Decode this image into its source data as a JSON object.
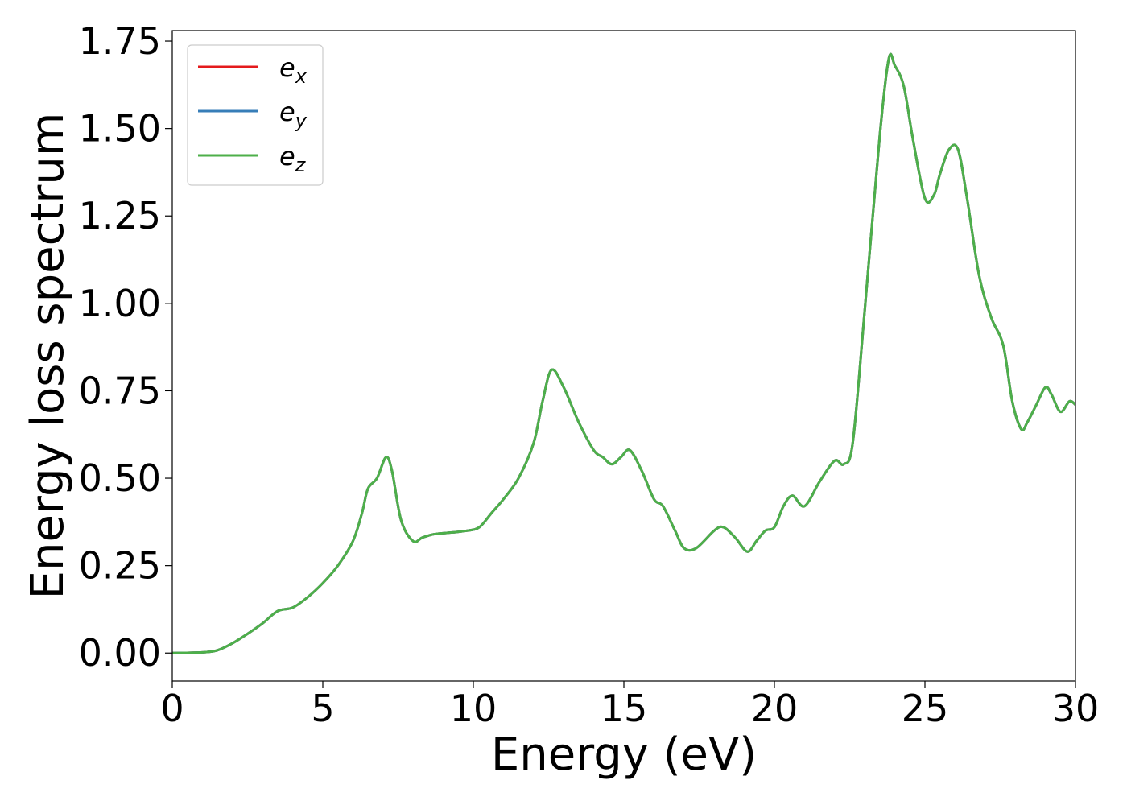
{
  "chart_data": {
    "type": "line",
    "title": "",
    "xlabel": "Energy (eV)",
    "ylabel": "Energy loss spectrum",
    "xlim": [
      0,
      30
    ],
    "ylim": [
      -0.08,
      1.78
    ],
    "xticks": [
      0,
      5,
      10,
      15,
      20,
      25,
      30
    ],
    "xtick_labels": [
      "0",
      "5",
      "10",
      "15",
      "20",
      "25",
      "30"
    ],
    "yticks": [
      0,
      0.25,
      0.5,
      0.75,
      1.0,
      1.25,
      1.5,
      1.75
    ],
    "ytick_labels": [
      "0.00",
      "0.25",
      "0.50",
      "0.75",
      "1.00",
      "1.25",
      "1.50",
      "1.75"
    ],
    "grid": false,
    "legend_position": "top-left",
    "x": [
      0,
      1,
      1.5,
      2,
      2.5,
      3,
      3.5,
      4,
      4.5,
      5,
      5.5,
      6,
      6.3,
      6.5,
      6.8,
      7.1,
      7.3,
      7.6,
      8,
      8.3,
      8.7,
      9.3,
      9.8,
      10.2,
      10.6,
      11,
      11.5,
      12,
      12.3,
      12.6,
      13,
      13.5,
      14,
      14.3,
      14.6,
      14.9,
      15.2,
      15.6,
      16,
      16.3,
      16.7,
      17,
      17.4,
      18,
      18.3,
      18.7,
      19.1,
      19.4,
      19.7,
      20,
      20.3,
      20.6,
      21,
      21.5,
      22,
      22.3,
      22.6,
      23,
      23.5,
      23.8,
      24,
      24.3,
      24.6,
      25,
      25.3,
      25.5,
      25.8,
      26.1,
      26.4,
      26.8,
      27.2,
      27.6,
      27.9,
      28.2,
      28.4,
      28.7,
      29,
      29.2,
      29.5,
      29.8,
      30
    ],
    "series": [
      {
        "name": "e_x",
        "color": "#e41a1c",
        "values": [
          0,
          0.002,
          0.008,
          0.028,
          0.055,
          0.085,
          0.12,
          0.13,
          0.16,
          0.2,
          0.25,
          0.32,
          0.4,
          0.47,
          0.5,
          0.56,
          0.52,
          0.38,
          0.32,
          0.33,
          0.34,
          0.345,
          0.35,
          0.36,
          0.4,
          0.44,
          0.5,
          0.6,
          0.72,
          0.81,
          0.76,
          0.66,
          0.58,
          0.56,
          0.54,
          0.56,
          0.58,
          0.52,
          0.44,
          0.42,
          0.35,
          0.3,
          0.3,
          0.35,
          0.36,
          0.33,
          0.29,
          0.32,
          0.35,
          0.36,
          0.42,
          0.45,
          0.42,
          0.49,
          0.55,
          0.54,
          0.6,
          0.98,
          1.48,
          1.7,
          1.68,
          1.62,
          1.47,
          1.3,
          1.31,
          1.37,
          1.44,
          1.44,
          1.3,
          1.08,
          0.96,
          0.88,
          0.72,
          0.64,
          0.66,
          0.71,
          0.76,
          0.74,
          0.69,
          0.72,
          0.71
        ]
      },
      {
        "name": "e_y",
        "color": "#377eb8",
        "values": [
          0,
          0.002,
          0.008,
          0.028,
          0.055,
          0.085,
          0.12,
          0.13,
          0.16,
          0.2,
          0.25,
          0.32,
          0.4,
          0.47,
          0.5,
          0.56,
          0.52,
          0.38,
          0.32,
          0.33,
          0.34,
          0.345,
          0.35,
          0.36,
          0.4,
          0.44,
          0.5,
          0.6,
          0.72,
          0.81,
          0.76,
          0.66,
          0.58,
          0.56,
          0.54,
          0.56,
          0.58,
          0.52,
          0.44,
          0.42,
          0.35,
          0.3,
          0.3,
          0.35,
          0.36,
          0.33,
          0.29,
          0.32,
          0.35,
          0.36,
          0.42,
          0.45,
          0.42,
          0.49,
          0.55,
          0.54,
          0.6,
          0.98,
          1.48,
          1.7,
          1.68,
          1.62,
          1.47,
          1.3,
          1.31,
          1.37,
          1.44,
          1.44,
          1.3,
          1.08,
          0.96,
          0.88,
          0.72,
          0.64,
          0.66,
          0.71,
          0.76,
          0.74,
          0.69,
          0.72,
          0.71
        ]
      },
      {
        "name": "e_z",
        "color": "#4daf4a",
        "values": [
          0,
          0.002,
          0.008,
          0.028,
          0.055,
          0.085,
          0.12,
          0.13,
          0.16,
          0.2,
          0.25,
          0.32,
          0.4,
          0.47,
          0.5,
          0.56,
          0.52,
          0.38,
          0.32,
          0.33,
          0.34,
          0.345,
          0.35,
          0.36,
          0.4,
          0.44,
          0.5,
          0.6,
          0.72,
          0.81,
          0.76,
          0.66,
          0.58,
          0.56,
          0.54,
          0.56,
          0.58,
          0.52,
          0.44,
          0.42,
          0.35,
          0.3,
          0.3,
          0.35,
          0.36,
          0.33,
          0.29,
          0.32,
          0.35,
          0.36,
          0.42,
          0.45,
          0.42,
          0.49,
          0.55,
          0.54,
          0.6,
          0.98,
          1.48,
          1.7,
          1.68,
          1.62,
          1.47,
          1.3,
          1.31,
          1.37,
          1.44,
          1.44,
          1.3,
          1.08,
          0.96,
          0.88,
          0.72,
          0.64,
          0.66,
          0.71,
          0.76,
          0.74,
          0.69,
          0.72,
          0.71
        ]
      }
    ],
    "legend": [
      {
        "base": "e",
        "sub": "x",
        "color": "#e41a1c"
      },
      {
        "base": "e",
        "sub": "y",
        "color": "#377eb8"
      },
      {
        "base": "e",
        "sub": "z",
        "color": "#4daf4a"
      }
    ]
  }
}
